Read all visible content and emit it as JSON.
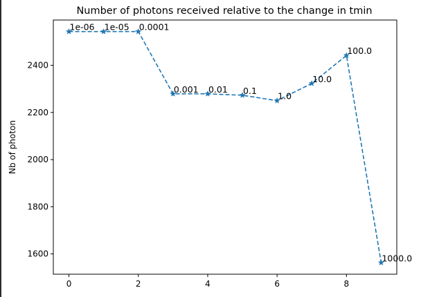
{
  "chart_data": {
    "type": "line",
    "title": "Number of photons received relative to the change in tmin",
    "xlabel": "",
    "ylabel": "Nb of photon",
    "x": [
      0,
      1,
      2,
      3,
      4,
      5,
      6,
      7,
      8,
      9
    ],
    "series": [
      {
        "values": [
          2543,
          2543,
          2543,
          2279,
          2279,
          2273,
          2250,
          2323,
          2442,
          1563
        ],
        "point_labels": [
          "1e-06",
          "1e-05",
          "0.0001",
          "0.001",
          "0.01",
          "0.1",
          "1.0",
          "10.0",
          "100.0",
          "1000.0"
        ],
        "color": "#1f77b4",
        "line_style": "dashed",
        "marker": "star"
      }
    ],
    "xlim": [
      -0.45,
      9.45
    ],
    "ylim": [
      1514,
      2592
    ],
    "xticks": [
      0,
      2,
      4,
      6,
      8
    ],
    "yticks": [
      1600,
      1800,
      2000,
      2200,
      2400
    ],
    "grid": false,
    "legend": "none"
  }
}
